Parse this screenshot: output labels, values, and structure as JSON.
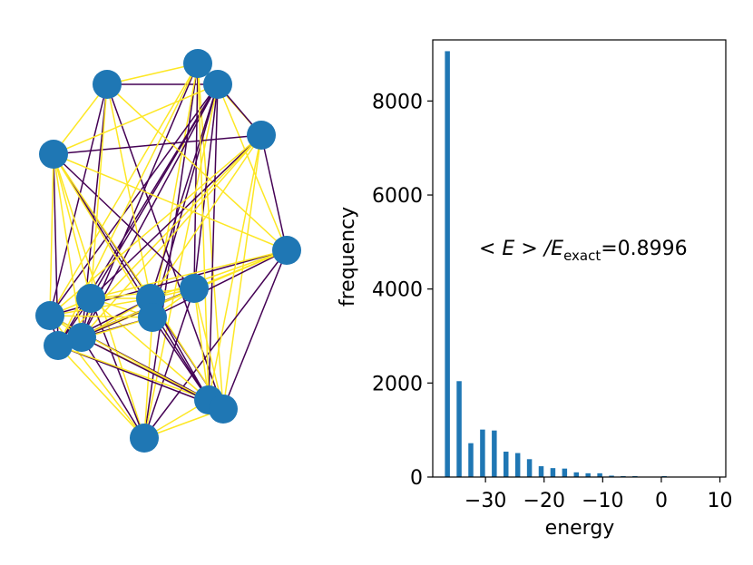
{
  "chart_data": [
    {
      "type": "graph",
      "colors": {
        "node": "#1f77b4",
        "edge_a": "#440154",
        "edge_b": "#fde725"
      },
      "nodes": [
        {
          "id": 0,
          "label": ""
        },
        {
          "id": 1,
          "label": ""
        },
        {
          "id": 2,
          "label": ""
        },
        {
          "id": 3,
          "label": ""
        },
        {
          "id": 4,
          "label": ""
        },
        {
          "id": 5,
          "label": ""
        },
        {
          "id": 6,
          "label": ""
        },
        {
          "id": 7,
          "label": ""
        },
        {
          "id": 8,
          "label": ""
        },
        {
          "id": 9,
          "label": ""
        },
        {
          "id": 10,
          "label": ""
        },
        {
          "id": 11,
          "label": ""
        },
        {
          "id": 12,
          "label": ""
        },
        {
          "id": 13,
          "label": ""
        },
        {
          "id": 14,
          "label": ""
        },
        {
          "id": 15,
          "label": ""
        }
      ],
      "edges": [
        {
          "s": 1,
          "t": 2,
          "c": "a"
        },
        {
          "s": 1,
          "t": 10,
          "c": "a"
        },
        {
          "s": 1,
          "t": 14,
          "c": "a"
        },
        {
          "s": 1,
          "t": 11,
          "c": "a"
        },
        {
          "s": 0,
          "t": 1,
          "c": "b"
        },
        {
          "s": 0,
          "t": 2,
          "c": "a"
        },
        {
          "s": 0,
          "t": 15,
          "c": "a"
        },
        {
          "s": 0,
          "t": 14,
          "c": "b"
        },
        {
          "s": 0,
          "t": 11,
          "c": "a"
        },
        {
          "s": 0,
          "t": 3,
          "c": "b"
        },
        {
          "s": 0,
          "t": 9,
          "c": "b"
        },
        {
          "s": 0,
          "t": 8,
          "c": "a"
        },
        {
          "s": 0,
          "t": 10,
          "c": "b"
        },
        {
          "s": 2,
          "t": 3,
          "c": "a"
        },
        {
          "s": 2,
          "t": 6,
          "c": "a"
        },
        {
          "s": 2,
          "t": 7,
          "c": "a"
        },
        {
          "s": 2,
          "t": 8,
          "c": "a"
        },
        {
          "s": 2,
          "t": 9,
          "c": "a"
        },
        {
          "s": 2,
          "t": 10,
          "c": "a"
        },
        {
          "s": 2,
          "t": 11,
          "c": "a"
        },
        {
          "s": 2,
          "t": 12,
          "c": "a"
        },
        {
          "s": 2,
          "t": 13,
          "c": "a"
        },
        {
          "s": 2,
          "t": 15,
          "c": "b"
        },
        {
          "s": 2,
          "t": 4,
          "c": "b"
        },
        {
          "s": 2,
          "t": 5,
          "c": "b"
        },
        {
          "s": 1,
          "t": 7,
          "c": "b"
        },
        {
          "s": 1,
          "t": 5,
          "c": "b"
        },
        {
          "s": 1,
          "t": 4,
          "c": "b"
        },
        {
          "s": 3,
          "t": 4,
          "c": "a"
        },
        {
          "s": 3,
          "t": 5,
          "c": "a"
        },
        {
          "s": 3,
          "t": 6,
          "c": "a"
        },
        {
          "s": 3,
          "t": 7,
          "c": "b"
        },
        {
          "s": 3,
          "t": 14,
          "c": "b"
        },
        {
          "s": 3,
          "t": 11,
          "c": "b"
        },
        {
          "s": 3,
          "t": 12,
          "c": "b"
        },
        {
          "s": 4,
          "t": 14,
          "c": "a"
        },
        {
          "s": 4,
          "t": 12,
          "c": "a"
        },
        {
          "s": 4,
          "t": 13,
          "c": "a"
        },
        {
          "s": 4,
          "t": 9,
          "c": "b"
        },
        {
          "s": 4,
          "t": 10,
          "c": "b"
        },
        {
          "s": 4,
          "t": 15,
          "c": "b"
        },
        {
          "s": 4,
          "t": 5,
          "c": "b"
        },
        {
          "s": 4,
          "t": 6,
          "c": "b"
        },
        {
          "s": 4,
          "t": 7,
          "c": "b"
        },
        {
          "s": 4,
          "t": 8,
          "c": "a"
        },
        {
          "s": 5,
          "t": 9,
          "c": "a"
        },
        {
          "s": 5,
          "t": 10,
          "c": "a"
        },
        {
          "s": 5,
          "t": 15,
          "c": "a"
        },
        {
          "s": 5,
          "t": 14,
          "c": "a"
        },
        {
          "s": 5,
          "t": 6,
          "c": "b"
        },
        {
          "s": 5,
          "t": 7,
          "c": "b"
        },
        {
          "s": 5,
          "t": 8,
          "c": "b"
        },
        {
          "s": 5,
          "t": 11,
          "c": "b"
        },
        {
          "s": 6,
          "t": 15,
          "c": "a"
        },
        {
          "s": 6,
          "t": 11,
          "c": "a"
        },
        {
          "s": 6,
          "t": 12,
          "c": "a"
        },
        {
          "s": 6,
          "t": 7,
          "c": "b"
        },
        {
          "s": 6,
          "t": 8,
          "c": "b"
        },
        {
          "s": 6,
          "t": 9,
          "c": "b"
        },
        {
          "s": 6,
          "t": 10,
          "c": "b"
        },
        {
          "s": 6,
          "t": 13,
          "c": "b"
        },
        {
          "s": 7,
          "t": 12,
          "c": "a"
        },
        {
          "s": 7,
          "t": 13,
          "c": "a"
        },
        {
          "s": 7,
          "t": 8,
          "c": "b"
        },
        {
          "s": 7,
          "t": 9,
          "c": "b"
        },
        {
          "s": 7,
          "t": 10,
          "c": "b"
        },
        {
          "s": 7,
          "t": 11,
          "c": "b"
        },
        {
          "s": 7,
          "t": 14,
          "c": "b"
        },
        {
          "s": 8,
          "t": 11,
          "c": "a"
        },
        {
          "s": 8,
          "t": 12,
          "c": "a"
        },
        {
          "s": 8,
          "t": 15,
          "c": "a"
        },
        {
          "s": 8,
          "t": 13,
          "c": "b"
        },
        {
          "s": 8,
          "t": 14,
          "c": "b"
        },
        {
          "s": 8,
          "t": 9,
          "c": "b"
        },
        {
          "s": 9,
          "t": 11,
          "c": "a"
        },
        {
          "s": 9,
          "t": 13,
          "c": "a"
        },
        {
          "s": 9,
          "t": 10,
          "c": "b"
        },
        {
          "s": 9,
          "t": 12,
          "c": "b"
        },
        {
          "s": 9,
          "t": 15,
          "c": "b"
        },
        {
          "s": 10,
          "t": 13,
          "c": "a"
        },
        {
          "s": 10,
          "t": 12,
          "c": "a"
        },
        {
          "s": 10,
          "t": 11,
          "c": "b"
        },
        {
          "s": 10,
          "t": 14,
          "c": "b"
        },
        {
          "s": 10,
          "t": 15,
          "c": "b"
        },
        {
          "s": 11,
          "t": 15,
          "c": "a"
        },
        {
          "s": 11,
          "t": 12,
          "c": "b"
        },
        {
          "s": 11,
          "t": 13,
          "c": "b"
        },
        {
          "s": 12,
          "t": 14,
          "c": "a"
        },
        {
          "s": 12,
          "t": 15,
          "c": "b"
        },
        {
          "s": 12,
          "t": 13,
          "c": "b"
        },
        {
          "s": 13,
          "t": 14,
          "c": "b"
        },
        {
          "s": 13,
          "t": 15,
          "c": "b"
        },
        {
          "s": 14,
          "t": 15,
          "c": "b"
        },
        {
          "s": 0,
          "t": 12,
          "c": "b"
        },
        {
          "s": 0,
          "t": 13,
          "c": "b"
        },
        {
          "s": 1,
          "t": 6,
          "c": "b"
        },
        {
          "s": 3,
          "t": 10,
          "c": "b"
        },
        {
          "s": 3,
          "t": 13,
          "c": "b"
        },
        {
          "s": 5,
          "t": 12,
          "c": "b"
        },
        {
          "s": 11,
          "t": 14,
          "c": "a"
        },
        {
          "s": 4,
          "t": 11,
          "c": "b"
        }
      ]
    },
    {
      "type": "bar",
      "xlabel": "energy",
      "ylabel": "frequency",
      "xlim": [
        -39,
        11
      ],
      "ylim": [
        0,
        9300
      ],
      "xticks": [
        -30,
        -20,
        -10,
        0,
        10
      ],
      "xtick_labels": [
        "−30",
        "−20",
        "−10",
        "0",
        "10"
      ],
      "yticks": [
        0,
        2000,
        4000,
        6000,
        8000
      ],
      "ytick_labels": [
        "0",
        "2000",
        "4000",
        "6000",
        "8000"
      ],
      "bar_color": "#1f77b4",
      "bar_width": 0.85,
      "x": [
        -36.5,
        -34.5,
        -32.5,
        -30.5,
        -28.5,
        -26.5,
        -24.5,
        -22.5,
        -20.5,
        -18.5,
        -16.5,
        -14.5,
        -12.5,
        -10.5,
        -8.5,
        -6.5,
        -4.5,
        0.5
      ],
      "values": [
        9060,
        2040,
        720,
        1010,
        990,
        540,
        510,
        380,
        230,
        190,
        180,
        100,
        80,
        80,
        30,
        20,
        20,
        20
      ],
      "annotation": {
        "prefix": "< E > /E",
        "subscript": "exact",
        "suffix": "=0.8996"
      }
    }
  ]
}
